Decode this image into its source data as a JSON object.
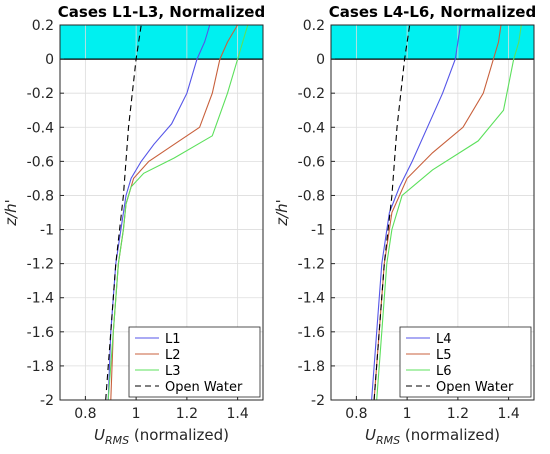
{
  "colors": {
    "ice": "#00f0f0",
    "L1": "#5555e8",
    "L2": "#c8603c",
    "L3": "#5ce05c",
    "L4": "#5555e8",
    "L5": "#c8603c",
    "L6": "#5ce05c",
    "open_water": "#000000",
    "grid": "#dddddd",
    "axis": "#262626"
  },
  "chart_data": [
    {
      "type": "line",
      "title": "Cases L1-L3, Normalized",
      "xlabel_main": "U",
      "xlabel_sub": "RMS",
      "xlabel_rest": " (normalized)",
      "ylabel": "z/h'",
      "xlim": [
        0.7,
        1.5
      ],
      "ylim": [
        -2,
        0.2
      ],
      "xticks": [
        0.8,
        1,
        1.2,
        1.4
      ],
      "xtick_labels": [
        "0.8",
        "1",
        "1.2",
        "1.4"
      ],
      "yticks": [
        0.2,
        0,
        -0.2,
        -0.4,
        -0.6,
        -0.8,
        -1,
        -1.2,
        -1.4,
        -1.6,
        -1.8,
        -2
      ],
      "ytick_labels": [
        "0.2",
        "0",
        "-0.2",
        "-0.4",
        "-0.6",
        "-0.8",
        "-1",
        "-1.2",
        "-1.4",
        "-1.6",
        "-1.8",
        "-2"
      ],
      "grid": true,
      "ice_band": [
        0,
        0.2
      ],
      "legend": {
        "position": "bottom-right",
        "entries": [
          "L1",
          "L2",
          "L3",
          "Open Water"
        ]
      },
      "series": [
        {
          "name": "L1",
          "style": "solid",
          "x": [
            0.89,
            0.9,
            0.92,
            0.94,
            0.96,
            0.98,
            1.02,
            1.07,
            1.14,
            1.2,
            1.24,
            1.27,
            1.28,
            1.29
          ],
          "y": [
            -2,
            -1.6,
            -1.2,
            -1.0,
            -0.8,
            -0.7,
            -0.6,
            -0.5,
            -0.38,
            -0.2,
            0,
            0.1,
            0.15,
            0.2
          ]
        },
        {
          "name": "L2",
          "style": "solid",
          "x": [
            0.9,
            0.91,
            0.93,
            0.95,
            0.96,
            0.99,
            1.05,
            1.15,
            1.25,
            1.3,
            1.33,
            1.36,
            1.38,
            1.4
          ],
          "y": [
            -2,
            -1.6,
            -1.2,
            -1.0,
            -0.85,
            -0.7,
            -0.6,
            -0.5,
            -0.4,
            -0.2,
            0,
            0.1,
            0.15,
            0.2
          ]
        },
        {
          "name": "L3",
          "style": "solid",
          "x": [
            0.89,
            0.91,
            0.93,
            0.95,
            0.96,
            0.98,
            1.03,
            1.15,
            1.3,
            1.36,
            1.4,
            1.42,
            1.43,
            1.44
          ],
          "y": [
            -2,
            -1.6,
            -1.2,
            -1.0,
            -0.85,
            -0.75,
            -0.67,
            -0.58,
            -0.45,
            -0.2,
            0,
            0.1,
            0.15,
            0.2
          ]
        },
        {
          "name": "Open Water",
          "style": "dashed",
          "x": [
            0.88,
            0.9,
            0.92,
            0.95,
            0.97,
            1.0,
            1.02
          ],
          "y": [
            -2,
            -1.6,
            -1.2,
            -0.8,
            -0.4,
            0,
            0.2
          ]
        }
      ]
    },
    {
      "type": "line",
      "title": "Cases L4-L6, Normalized",
      "xlabel_main": "U",
      "xlabel_sub": "RMS",
      "xlabel_rest": " (normalized)",
      "ylabel": "z/h'",
      "xlim": [
        0.7,
        1.5
      ],
      "ylim": [
        -2,
        0.2
      ],
      "xticks": [
        0.8,
        1,
        1.2,
        1.4
      ],
      "xtick_labels": [
        "0.8",
        "1",
        "1.2",
        "1.4"
      ],
      "yticks": [
        0.2,
        0,
        -0.2,
        -0.4,
        -0.6,
        -0.8,
        -1,
        -1.2,
        -1.4,
        -1.6,
        -1.8,
        -2
      ],
      "ytick_labels": [
        "0.2",
        "0",
        "-0.2",
        "-0.4",
        "-0.6",
        "-0.8",
        "-1",
        "-1.2",
        "-1.4",
        "-1.6",
        "-1.8",
        "-2"
      ],
      "grid": true,
      "ice_band": [
        0,
        0.2
      ],
      "legend": {
        "position": "bottom-right",
        "entries": [
          "L4",
          "L5",
          "L6",
          "Open Water"
        ]
      },
      "series": [
        {
          "name": "L4",
          "style": "solid",
          "x": [
            0.86,
            0.88,
            0.9,
            0.93,
            0.97,
            1.02,
            1.08,
            1.14,
            1.19,
            1.2,
            1.21
          ],
          "y": [
            -2,
            -1.6,
            -1.2,
            -0.9,
            -0.75,
            -0.6,
            -0.4,
            -0.2,
            0,
            0.1,
            0.2
          ]
        },
        {
          "name": "L5",
          "style": "solid",
          "x": [
            0.87,
            0.89,
            0.91,
            0.94,
            1.0,
            1.1,
            1.22,
            1.3,
            1.34,
            1.36,
            1.37
          ],
          "y": [
            -2,
            -1.6,
            -1.2,
            -0.9,
            -0.7,
            -0.55,
            -0.4,
            -0.2,
            0,
            0.1,
            0.2
          ]
        },
        {
          "name": "L6",
          "style": "solid",
          "x": [
            0.88,
            0.9,
            0.92,
            0.94,
            0.98,
            1.1,
            1.28,
            1.38,
            1.42,
            1.44,
            1.45
          ],
          "y": [
            -2,
            -1.6,
            -1.2,
            -1.0,
            -0.8,
            -0.65,
            -0.48,
            -0.3,
            0,
            0.1,
            0.2
          ]
        },
        {
          "name": "Open Water",
          "style": "dashed",
          "x": [
            0.87,
            0.89,
            0.91,
            0.94,
            0.96,
            0.99,
            1.01
          ],
          "y": [
            -2,
            -1.6,
            -1.2,
            -0.8,
            -0.4,
            0,
            0.2
          ]
        }
      ]
    }
  ]
}
